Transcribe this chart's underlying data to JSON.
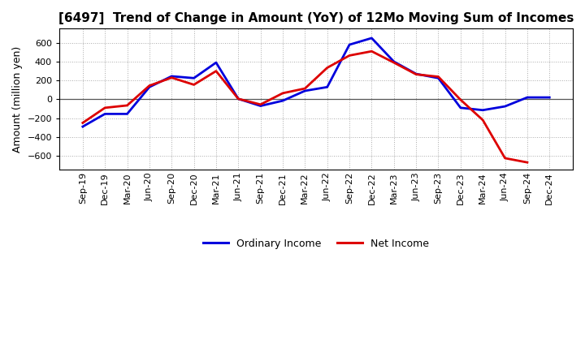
{
  "title": "[6497]  Trend of Change in Amount (YoY) of 12Mo Moving Sum of Incomes",
  "ylabel": "Amount (million yen)",
  "background_color": "#ffffff",
  "plot_bg_color": "#ffffff",
  "x_labels": [
    "Sep-19",
    "Dec-19",
    "Mar-20",
    "Jun-20",
    "Sep-20",
    "Dec-20",
    "Mar-21",
    "Jun-21",
    "Sep-21",
    "Dec-21",
    "Mar-22",
    "Jun-22",
    "Sep-22",
    "Dec-22",
    "Mar-23",
    "Jun-23",
    "Sep-23",
    "Dec-23",
    "Mar-24",
    "Jun-24",
    "Sep-24",
    "Dec-24"
  ],
  "ordinary_income": [
    -290,
    -155,
    -155,
    130,
    245,
    225,
    390,
    5,
    -70,
    -15,
    90,
    130,
    580,
    650,
    400,
    270,
    225,
    -90,
    -115,
    -75,
    20,
    20
  ],
  "net_income": [
    -250,
    -90,
    -65,
    145,
    230,
    155,
    300,
    5,
    -55,
    65,
    115,
    335,
    465,
    510,
    390,
    265,
    240,
    -5,
    -220,
    -625,
    -670,
    null
  ],
  "ordinary_color": "#0000dd",
  "net_color": "#dd0000",
  "ylim": [
    -750,
    750
  ],
  "yticks": [
    -600,
    -400,
    -200,
    0,
    200,
    400,
    600
  ],
  "legend_labels": [
    "Ordinary Income",
    "Net Income"
  ],
  "linewidth": 2.0,
  "title_fontsize": 11,
  "axis_fontsize": 8,
  "ylabel_fontsize": 9
}
